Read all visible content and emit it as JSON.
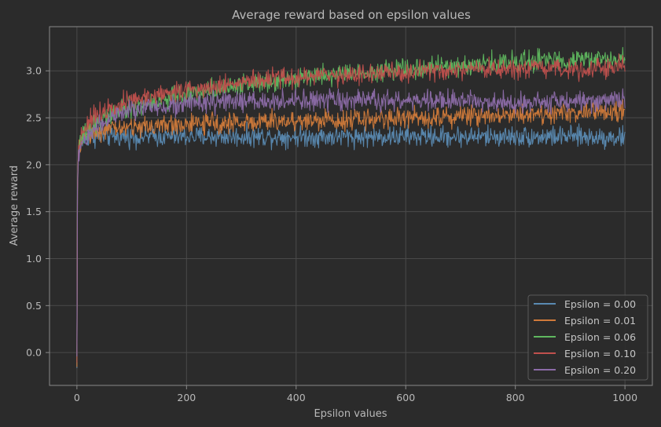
{
  "chart_data": {
    "type": "line",
    "title": "Average reward based on epsilon values",
    "xlabel": "Epsilon values",
    "ylabel": "Average reward",
    "xlim": [
      -50,
      1050
    ],
    "ylim": [
      -0.35,
      3.47
    ],
    "xticks": [
      0,
      200,
      400,
      600,
      800,
      1000
    ],
    "yticks": [
      0.0,
      0.5,
      1.0,
      1.5,
      2.0,
      2.5,
      3.0
    ],
    "xtick_labels": [
      "0",
      "200",
      "400",
      "600",
      "800",
      "1000"
    ],
    "ytick_labels": [
      "0.0",
      "0.5",
      "1.0",
      "1.5",
      "2.0",
      "2.5",
      "3.0"
    ],
    "grid": true,
    "legend_position": "bottom-right",
    "background": "#2b2b2b",
    "axes_edge_color": "#8a8a8a",
    "grid_color": "#4a4a4a",
    "text_color": "#b9b9b9",
    "noise_amplitude": 0.1,
    "series": [
      {
        "name": "Epsilon = 0.00",
        "color": "#5a8ab2",
        "x": [
          0,
          1,
          2,
          3,
          5,
          8,
          12,
          20,
          40,
          60,
          100,
          150,
          200,
          300,
          400,
          500,
          600,
          700,
          800,
          900,
          1000
        ],
        "y": [
          -0.17,
          1.8,
          2.0,
          2.1,
          2.2,
          2.24,
          2.27,
          2.29,
          2.3,
          2.3,
          2.3,
          2.3,
          2.3,
          2.3,
          2.3,
          2.3,
          2.3,
          2.3,
          2.3,
          2.3,
          2.29
        ]
      },
      {
        "name": "Epsilon = 0.01",
        "color": "#d07a3a",
        "x": [
          0,
          1,
          2,
          3,
          5,
          8,
          12,
          20,
          40,
          60,
          100,
          150,
          200,
          300,
          400,
          500,
          600,
          700,
          800,
          900,
          1000
        ],
        "y": [
          -0.17,
          1.75,
          2.0,
          2.1,
          2.2,
          2.25,
          2.3,
          2.33,
          2.36,
          2.38,
          2.4,
          2.42,
          2.43,
          2.45,
          2.47,
          2.48,
          2.5,
          2.52,
          2.54,
          2.55,
          2.57
        ]
      },
      {
        "name": "Epsilon = 0.06",
        "color": "#5fb85f",
        "x": [
          0,
          1,
          2,
          3,
          5,
          8,
          12,
          20,
          40,
          60,
          100,
          150,
          200,
          300,
          400,
          500,
          600,
          700,
          800,
          900,
          1000
        ],
        "y": [
          -0.1,
          1.7,
          2.0,
          2.1,
          2.2,
          2.27,
          2.32,
          2.38,
          2.46,
          2.53,
          2.6,
          2.68,
          2.75,
          2.85,
          2.93,
          2.98,
          3.02,
          3.05,
          3.1,
          3.12,
          3.13
        ]
      },
      {
        "name": "Epsilon = 0.10",
        "color": "#c0504d",
        "x": [
          0,
          1,
          2,
          3,
          5,
          8,
          12,
          20,
          40,
          60,
          100,
          150,
          200,
          300,
          400,
          500,
          600,
          700,
          800,
          900,
          1000
        ],
        "y": [
          -0.1,
          1.75,
          2.0,
          2.15,
          2.25,
          2.32,
          2.38,
          2.45,
          2.55,
          2.62,
          2.68,
          2.75,
          2.8,
          2.88,
          2.93,
          2.96,
          2.98,
          3.0,
          3.01,
          3.02,
          3.05
        ]
      },
      {
        "name": "Epsilon = 0.20",
        "color": "#8c6ba8",
        "x": [
          0,
          1,
          2,
          3,
          5,
          8,
          12,
          20,
          40,
          60,
          100,
          150,
          200,
          300,
          400,
          500,
          600,
          700,
          800,
          900,
          1000
        ],
        "y": [
          -0.05,
          1.7,
          1.95,
          2.1,
          2.18,
          2.22,
          2.25,
          2.3,
          2.42,
          2.5,
          2.58,
          2.62,
          2.65,
          2.67,
          2.68,
          2.68,
          2.68,
          2.68,
          2.67,
          2.67,
          2.7
        ]
      }
    ]
  }
}
